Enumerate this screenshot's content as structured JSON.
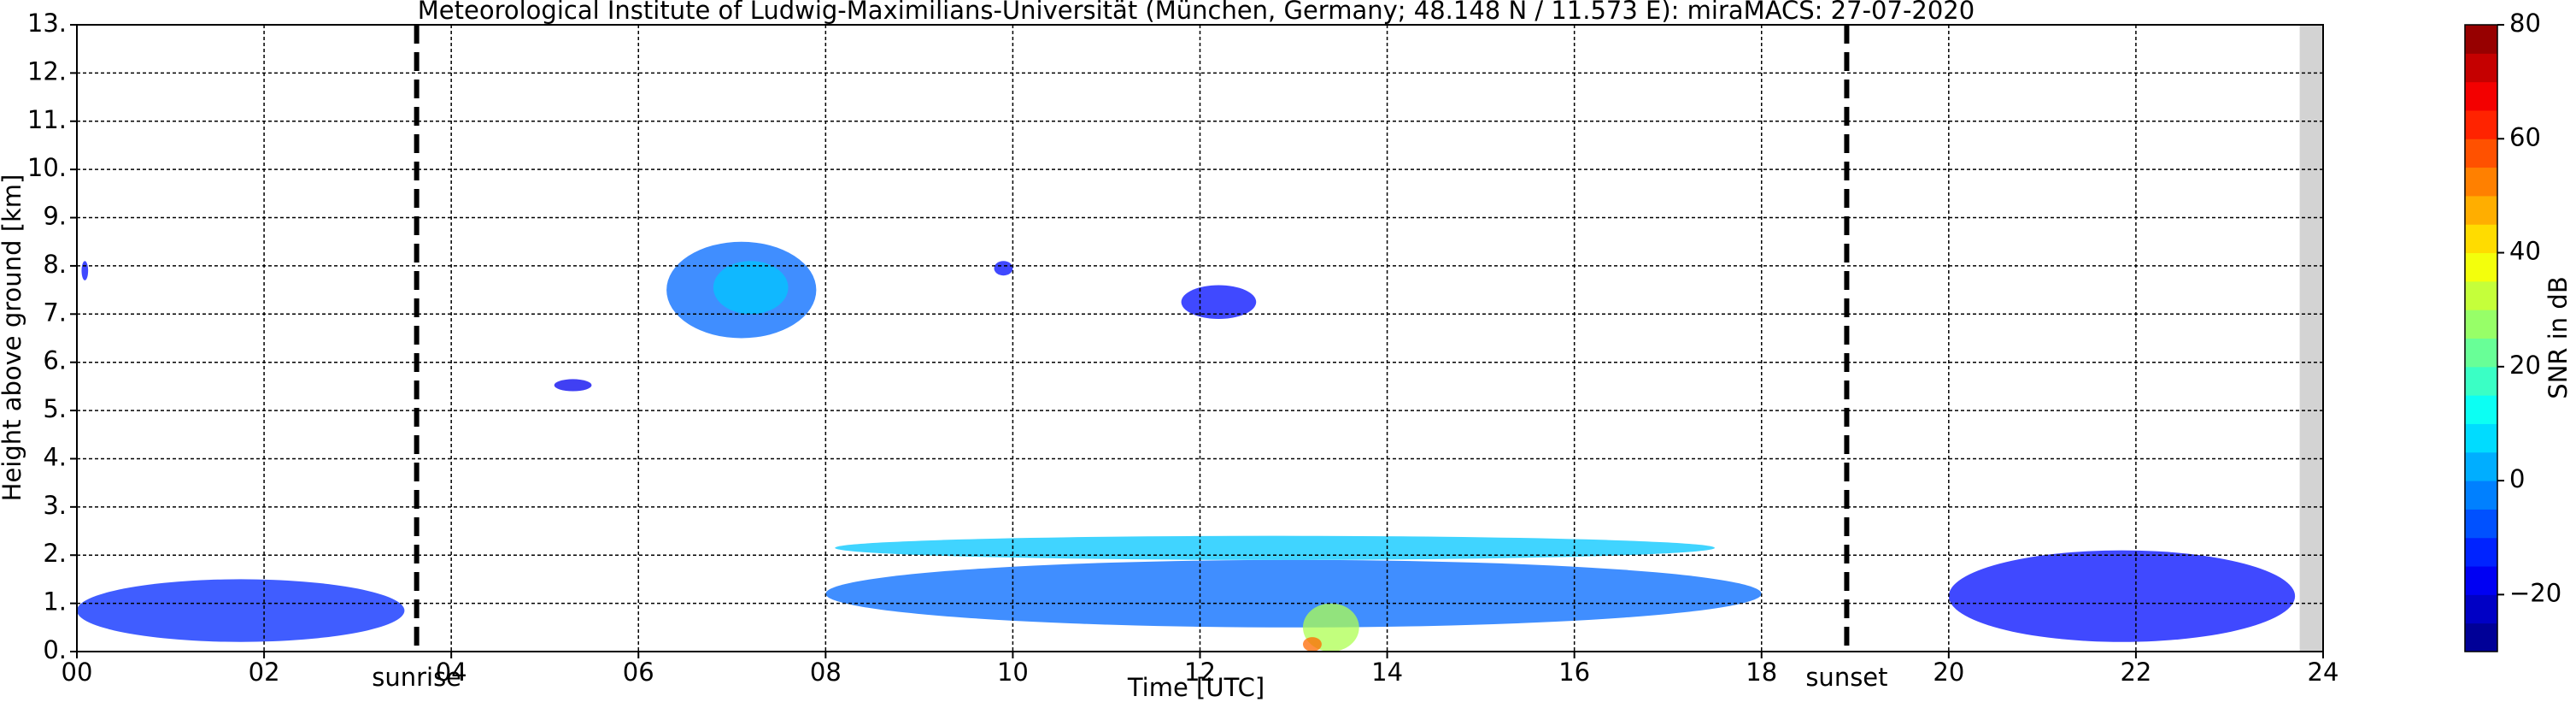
{
  "chart_data": {
    "type": "heatmap",
    "title": "Meteorological Institute of Ludwig-Maximilians-Universität (München, Germany; 48.148 N / 11.573 E):    miraMACS: 27-07-2020",
    "xlabel": "Time [UTC]",
    "ylabel": "Height above ground [km]",
    "xlim": [
      0,
      24
    ],
    "xticks": [
      {
        "value": 0,
        "label": "00"
      },
      {
        "value": 2,
        "label": "02"
      },
      {
        "value": 4,
        "label": "04"
      },
      {
        "value": 6,
        "label": "06"
      },
      {
        "value": 8,
        "label": "08"
      },
      {
        "value": 10,
        "label": "10"
      },
      {
        "value": 12,
        "label": "12"
      },
      {
        "value": 14,
        "label": "14"
      },
      {
        "value": 16,
        "label": "16"
      },
      {
        "value": 18,
        "label": "18"
      },
      {
        "value": 20,
        "label": "20"
      },
      {
        "value": 22,
        "label": "22"
      },
      {
        "value": 24,
        "label": "24"
      }
    ],
    "ylim": [
      0,
      13
    ],
    "yticks": [
      {
        "value": 0,
        "label": "0."
      },
      {
        "value": 1,
        "label": "1."
      },
      {
        "value": 2,
        "label": "2."
      },
      {
        "value": 3,
        "label": "3."
      },
      {
        "value": 4,
        "label": "4."
      },
      {
        "value": 5,
        "label": "5."
      },
      {
        "value": 6,
        "label": "6."
      },
      {
        "value": 7,
        "label": "7."
      },
      {
        "value": 8,
        "label": "8."
      },
      {
        "value": 9,
        "label": "9."
      },
      {
        "value": 10,
        "label": "10."
      },
      {
        "value": 11,
        "label": "11."
      },
      {
        "value": 12,
        "label": "12."
      },
      {
        "value": 13,
        "label": "13."
      }
    ],
    "grid": true,
    "no_data": {
      "range": [
        23.75,
        24
      ],
      "color": "#d3d3d3"
    },
    "markers": [
      {
        "x": 3.63,
        "label": "sunrise"
      },
      {
        "x": 18.91,
        "label": "sunset"
      }
    ],
    "colorbar": {
      "label": "SNR in dB",
      "colormap": "jet",
      "lim": [
        -30,
        80
      ],
      "ticks": [
        {
          "value": -20,
          "label": "−20"
        },
        0,
        20,
        40,
        60,
        80
      ]
    },
    "echoes": [
      {
        "t0": 0.05,
        "t1": 0.12,
        "h0": 7.7,
        "h1": 8.1,
        "snr": -15
      },
      {
        "t0": 5.1,
        "t1": 5.5,
        "h0": 5.4,
        "h1": 5.65,
        "snr": -18
      },
      {
        "t0": 6.3,
        "t1": 7.9,
        "h0": 6.5,
        "h1": 8.5,
        "snr": -5
      },
      {
        "t0": 6.8,
        "t1": 7.6,
        "h0": 7.0,
        "h1": 8.1,
        "snr": 5
      },
      {
        "t0": 9.8,
        "t1": 10.0,
        "h0": 7.8,
        "h1": 8.1,
        "snr": -15
      },
      {
        "t0": 11.8,
        "t1": 12.6,
        "h0": 6.9,
        "h1": 7.6,
        "snr": -15
      },
      {
        "t0": 8.1,
        "t1": 17.5,
        "h0": 1.9,
        "h1": 2.4,
        "snr": 5
      },
      {
        "t0": 8.0,
        "t1": 18.0,
        "h0": 0.5,
        "h1": 1.9,
        "snr": -5
      },
      {
        "t0": 13.1,
        "t1": 13.7,
        "h0": 0.0,
        "h1": 1.0,
        "snr": 30
      },
      {
        "t0": 13.1,
        "t1": 13.3,
        "h0": 0.0,
        "h1": 0.3,
        "snr": 55
      },
      {
        "t0": 0.0,
        "t1": 3.5,
        "h0": 0.2,
        "h1": 1.5,
        "snr": -12
      },
      {
        "t0": 20.0,
        "t1": 23.7,
        "h0": 0.2,
        "h1": 2.1,
        "snr": -15
      }
    ]
  }
}
